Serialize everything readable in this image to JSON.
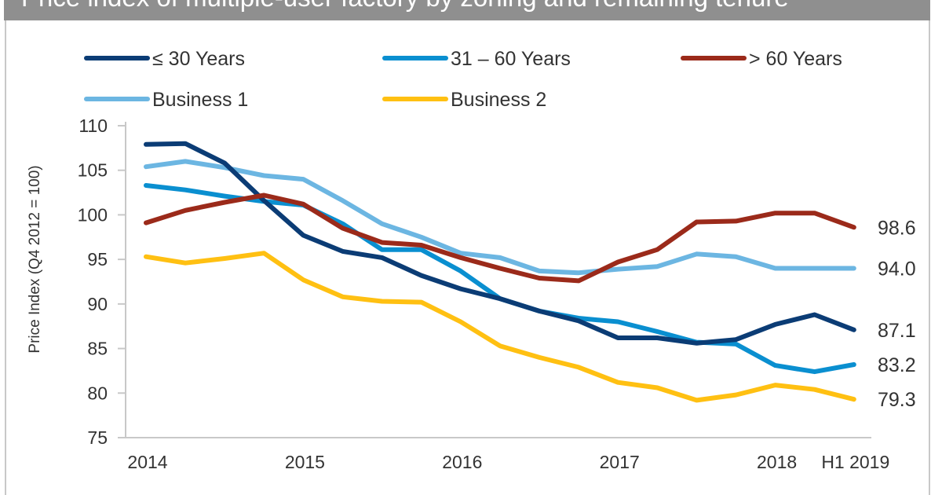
{
  "title": "Price index of multiple-user factory by zoning and remaining tenure",
  "chart_data": {
    "type": "line",
    "title": "Price index of multiple-user factory by zoning and remaining tenure",
    "xlabel": "",
    "ylabel": "Price Index (Q4 2012 = 100)",
    "ylim": [
      75,
      110
    ],
    "yticks": [
      75,
      80,
      85,
      90,
      95,
      100,
      105,
      110
    ],
    "x_tick_labels": [
      "2014",
      "",
      "",
      "",
      "2015",
      "",
      "",
      "",
      "2016",
      "",
      "",
      "",
      "2017",
      "",
      "",
      "",
      "2018",
      "",
      "H1 2019"
    ],
    "legend_position": "top",
    "grid": false,
    "series": [
      {
        "name": "≤ 30 Years",
        "color": "#0b3c75",
        "end_label": "87.1",
        "values": [
          107.9,
          108.0,
          105.8,
          101.6,
          97.7,
          95.9,
          95.2,
          93.2,
          91.7,
          90.6,
          89.2,
          88.1,
          86.2,
          86.2,
          85.6,
          86.0,
          87.7,
          88.8,
          87.1
        ]
      },
      {
        "name": "31 – 60 Years",
        "color": "#0a8fd0",
        "end_label": "83.2",
        "values": [
          103.3,
          102.8,
          102.1,
          101.5,
          101.1,
          99.0,
          96.1,
          96.1,
          93.7,
          90.6,
          89.2,
          88.4,
          88.0,
          86.9,
          85.7,
          85.5,
          83.1,
          82.4,
          83.2
        ]
      },
      {
        "name": "> 60 Years",
        "color": "#9b2a1a",
        "end_label": "98.6",
        "values": [
          99.1,
          100.5,
          101.4,
          102.2,
          101.2,
          98.5,
          96.9,
          96.6,
          95.2,
          94.0,
          92.9,
          92.6,
          94.7,
          96.1,
          99.2,
          99.3,
          100.2,
          100.2,
          98.6
        ]
      },
      {
        "name": "Business 1",
        "color": "#6cb6e2",
        "end_label": "94.0",
        "values": [
          105.4,
          106.0,
          105.3,
          104.4,
          104.0,
          101.6,
          99.0,
          97.5,
          95.7,
          95.2,
          93.7,
          93.5,
          93.9,
          94.2,
          95.6,
          95.3,
          94.0,
          94.0,
          94.0
        ]
      },
      {
        "name": "Business 2",
        "color": "#ffc012",
        "end_label": "79.3",
        "values": [
          95.3,
          94.6,
          95.1,
          95.7,
          92.7,
          90.8,
          90.3,
          90.2,
          88.0,
          85.3,
          84.0,
          82.9,
          81.2,
          80.6,
          79.2,
          79.8,
          80.9,
          80.4,
          79.3
        ]
      }
    ]
  }
}
